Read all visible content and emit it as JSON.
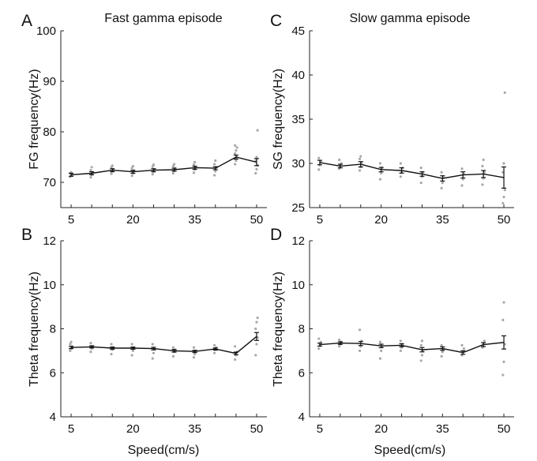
{
  "figure": {
    "xlabel": "Speed(cm/s)"
  },
  "chart_data": [
    {
      "panel": "A",
      "type": "line",
      "title": "Fast gamma episode",
      "xlabel": "",
      "ylabel": "FG frequency(Hz)",
      "ylim": [
        65,
        100
      ],
      "yticks": [
        70,
        80,
        90,
        100
      ],
      "xlim": [
        2.5,
        52.5
      ],
      "xticks": [
        5,
        20,
        35,
        50
      ],
      "x": [
        5,
        10,
        15,
        20,
        25,
        30,
        35,
        40,
        45,
        50
      ],
      "series": [
        {
          "name": "mean",
          "values": [
            71.5,
            71.8,
            72.4,
            72.1,
            72.4,
            72.5,
            72.9,
            72.8,
            75.0,
            74.0
          ],
          "errors": [
            0.3,
            0.3,
            0.3,
            0.3,
            0.3,
            0.3,
            0.3,
            0.3,
            0.4,
            0.7
          ]
        }
      ],
      "scatter": [
        [
          71.1,
          71.3,
          71.5,
          71.8,
          72.0
        ],
        [
          71.0,
          71.5,
          72.0,
          72.4,
          73.0
        ],
        [
          71.7,
          72.2,
          72.6,
          73.0,
          73.3
        ],
        [
          71.3,
          71.8,
          72.3,
          72.8,
          73.2
        ],
        [
          71.6,
          72.1,
          72.6,
          73.1,
          73.5
        ],
        [
          71.8,
          72.3,
          72.8,
          73.2,
          73.6
        ],
        [
          71.9,
          72.5,
          73.0,
          73.5,
          74.0
        ],
        [
          71.4,
          72.2,
          72.9,
          73.6,
          74.3
        ],
        [
          73.6,
          74.3,
          75.0,
          75.7,
          76.3,
          76.9,
          77.3
        ],
        [
          71.8,
          72.6,
          73.4,
          74.2,
          75.0,
          80.3
        ]
      ]
    },
    {
      "panel": "B",
      "type": "line",
      "title": "",
      "xlabel": "Speed(cm/s)",
      "ylabel": "Theta frequency(Hz)",
      "ylim": [
        4,
        12
      ],
      "yticks": [
        4,
        6,
        8,
        10,
        12
      ],
      "xlim": [
        2.5,
        52.5
      ],
      "xticks": [
        5,
        20,
        35,
        50
      ],
      "x": [
        5,
        10,
        15,
        20,
        25,
        30,
        35,
        40,
        45,
        50
      ],
      "series": [
        {
          "name": "mean",
          "values": [
            7.15,
            7.18,
            7.12,
            7.12,
            7.1,
            7.0,
            6.97,
            7.08,
            6.88,
            7.65
          ],
          "errors": [
            0.05,
            0.05,
            0.05,
            0.05,
            0.06,
            0.06,
            0.05,
            0.05,
            0.06,
            0.18
          ]
        }
      ],
      "scatter": [
        [
          7.0,
          7.1,
          7.2,
          7.3,
          7.4
        ],
        [
          6.95,
          7.1,
          7.2,
          7.35
        ],
        [
          6.85,
          7.05,
          7.15,
          7.3
        ],
        [
          6.8,
          7.0,
          7.15,
          7.3
        ],
        [
          6.65,
          6.9,
          7.1,
          7.3
        ],
        [
          6.75,
          6.95,
          7.05,
          7.15
        ],
        [
          6.7,
          6.85,
          7.0,
          7.15
        ],
        [
          6.9,
          7.05,
          7.15,
          7.25
        ],
        [
          6.6,
          6.8,
          6.95,
          7.2
        ],
        [
          6.8,
          7.3,
          7.6,
          8.0,
          8.3,
          8.5
        ]
      ]
    },
    {
      "panel": "C",
      "type": "line",
      "title": "Slow gamma episode",
      "xlabel": "",
      "ylabel": "SG frequency(Hz)",
      "ylim": [
        25,
        45
      ],
      "yticks": [
        25,
        30,
        35,
        40,
        45
      ],
      "xlim": [
        2.5,
        52.5
      ],
      "xticks": [
        5,
        20,
        35,
        50
      ],
      "x": [
        5,
        10,
        15,
        20,
        25,
        30,
        35,
        40,
        45,
        50
      ],
      "series": [
        {
          "name": "mean",
          "values": [
            30.1,
            29.7,
            29.9,
            29.3,
            29.2,
            28.8,
            28.3,
            28.7,
            28.8,
            28.4
          ],
          "errors": [
            0.25,
            0.2,
            0.3,
            0.25,
            0.3,
            0.25,
            0.3,
            0.35,
            0.4,
            1.2
          ]
        }
      ],
      "scatter": [
        [
          29.3,
          29.8,
          30.2,
          30.6
        ],
        [
          29.4,
          29.7,
          30.0,
          30.4
        ],
        [
          29.2,
          29.6,
          30.1,
          30.5,
          30.8
        ],
        [
          28.2,
          28.9,
          29.5,
          30.0
        ],
        [
          28.5,
          29.0,
          29.5,
          30.0
        ],
        [
          27.8,
          28.5,
          29.0,
          29.5
        ],
        [
          27.2,
          27.8,
          28.4,
          29.0
        ],
        [
          27.5,
          28.2,
          28.8,
          29.4
        ],
        [
          27.6,
          28.3,
          29.0,
          29.7,
          30.4
        ],
        [
          25.5,
          26.2,
          27.0,
          29.0,
          30.0,
          38.0
        ]
      ]
    },
    {
      "panel": "D",
      "type": "line",
      "title": "",
      "xlabel": "Speed(cm/s)",
      "ylabel": "Theta frequency(Hz)",
      "ylim": [
        4,
        12
      ],
      "yticks": [
        4,
        6,
        8,
        10,
        12
      ],
      "xlim": [
        2.5,
        52.5
      ],
      "xticks": [
        5,
        20,
        35,
        50
      ],
      "x": [
        5,
        10,
        15,
        20,
        25,
        30,
        35,
        40,
        45,
        50
      ],
      "series": [
        {
          "name": "mean",
          "values": [
            7.28,
            7.35,
            7.33,
            7.22,
            7.25,
            7.05,
            7.1,
            6.92,
            7.28,
            7.38
          ],
          "errors": [
            0.07,
            0.06,
            0.09,
            0.08,
            0.07,
            0.1,
            0.08,
            0.08,
            0.09,
            0.3
          ]
        }
      ],
      "scatter": [
        [
          7.1,
          7.25,
          7.4,
          7.55
        ],
        [
          7.2,
          7.3,
          7.4,
          7.5
        ],
        [
          7.0,
          7.2,
          7.45,
          7.95
        ],
        [
          6.65,
          7.0,
          7.2,
          7.4
        ],
        [
          7.0,
          7.15,
          7.3,
          7.45
        ],
        [
          6.55,
          6.8,
          7.0,
          7.25,
          7.45
        ],
        [
          6.75,
          6.95,
          7.1,
          7.25
        ],
        [
          6.8,
          6.95,
          7.1,
          7.25
        ],
        [
          7.15,
          7.3,
          7.45
        ],
        [
          5.9,
          6.5,
          7.3,
          8.4,
          9.2
        ]
      ]
    }
  ]
}
